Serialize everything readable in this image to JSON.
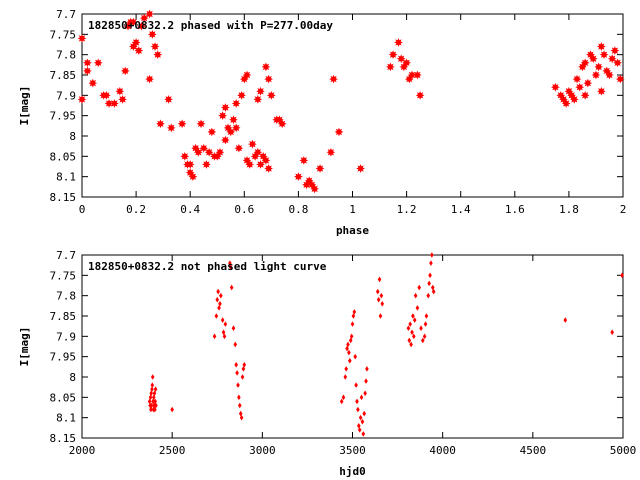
{
  "chart_data": [
    {
      "type": "scatter",
      "title": "182850+0832.2 phased with P=277.00day",
      "xlabel": "phase",
      "ylabel": "I[mag]",
      "xlim": [
        0,
        2
      ],
      "ylim": [
        8.15,
        7.7
      ],
      "y_inverted": true,
      "xticks": [
        "0",
        "0.2",
        "0.4",
        "0.6",
        "0.8",
        "1",
        "1.2",
        "1.4",
        "1.6",
        "1.8",
        "2"
      ],
      "yticks": [
        "7.7",
        "7.75",
        "7.8",
        "7.85",
        "7.9",
        "7.95",
        "8",
        "8.05",
        "8.1",
        "8.15"
      ],
      "grid": false,
      "marker_color": "#ff0000",
      "marker": "star",
      "series": [
        {
          "points": [
            [
              0.0,
              7.76
            ],
            [
              0.0,
              7.91
            ],
            [
              0.02,
              7.84
            ],
            [
              0.02,
              7.82
            ],
            [
              0.04,
              7.87
            ],
            [
              0.06,
              7.82
            ],
            [
              0.08,
              7.9
            ],
            [
              0.09,
              7.9
            ],
            [
              0.1,
              7.92
            ],
            [
              0.12,
              7.92
            ],
            [
              0.14,
              7.89
            ],
            [
              0.15,
              7.91
            ],
            [
              0.16,
              7.84
            ],
            [
              0.17,
              7.73
            ],
            [
              0.18,
              7.72
            ],
            [
              0.19,
              7.72
            ],
            [
              0.19,
              7.78
            ],
            [
              0.2,
              7.77
            ],
            [
              0.21,
              7.79
            ],
            [
              0.22,
              7.73
            ],
            [
              0.23,
              7.71
            ],
            [
              0.25,
              7.7
            ],
            [
              0.25,
              7.86
            ],
            [
              0.26,
              7.75
            ],
            [
              0.27,
              7.78
            ],
            [
              0.28,
              7.8
            ],
            [
              0.29,
              7.97
            ],
            [
              0.32,
              7.91
            ],
            [
              0.33,
              7.98
            ],
            [
              0.37,
              7.97
            ],
            [
              0.38,
              8.05
            ],
            [
              0.39,
              8.07
            ],
            [
              0.4,
              8.07
            ],
            [
              0.4,
              8.09
            ],
            [
              0.41,
              8.1
            ],
            [
              0.42,
              8.03
            ],
            [
              0.43,
              8.04
            ],
            [
              0.44,
              7.97
            ],
            [
              0.45,
              8.03
            ],
            [
              0.46,
              8.07
            ],
            [
              0.47,
              8.04
            ],
            [
              0.48,
              7.99
            ],
            [
              0.49,
              8.05
            ],
            [
              0.5,
              8.05
            ],
            [
              0.51,
              8.04
            ],
            [
              0.52,
              7.95
            ],
            [
              0.53,
              8.01
            ],
            [
              0.53,
              7.93
            ],
            [
              0.54,
              7.98
            ],
            [
              0.55,
              7.99
            ],
            [
              0.56,
              7.96
            ],
            [
              0.57,
              7.98
            ],
            [
              0.57,
              7.92
            ],
            [
              0.58,
              8.03
            ],
            [
              0.59,
              7.9
            ],
            [
              0.6,
              7.86
            ],
            [
              0.61,
              7.85
            ],
            [
              0.61,
              8.06
            ],
            [
              0.62,
              8.07
            ],
            [
              0.63,
              8.02
            ],
            [
              0.64,
              8.05
            ],
            [
              0.65,
              7.91
            ],
            [
              0.65,
              8.04
            ],
            [
              0.66,
              8.07
            ],
            [
              0.66,
              7.89
            ],
            [
              0.67,
              8.05
            ],
            [
              0.68,
              8.06
            ],
            [
              0.68,
              7.83
            ],
            [
              0.69,
              8.08
            ],
            [
              0.69,
              7.86
            ],
            [
              0.7,
              7.9
            ],
            [
              0.72,
              7.96
            ],
            [
              0.73,
              7.96
            ],
            [
              0.74,
              7.97
            ],
            [
              0.8,
              8.1
            ],
            [
              0.82,
              8.06
            ],
            [
              0.83,
              8.12
            ],
            [
              0.84,
              8.11
            ],
            [
              0.85,
              8.12
            ],
            [
              0.86,
              8.13
            ],
            [
              0.88,
              8.08
            ],
            [
              0.92,
              8.04
            ],
            [
              0.93,
              7.86
            ],
            [
              0.95,
              7.99
            ],
            [
              1.03,
              8.08
            ],
            [
              1.14,
              7.83
            ],
            [
              1.15,
              7.8
            ],
            [
              1.17,
              7.77
            ],
            [
              1.18,
              7.81
            ],
            [
              1.19,
              7.83
            ],
            [
              1.2,
              7.82
            ],
            [
              1.21,
              7.86
            ],
            [
              1.22,
              7.85
            ],
            [
              1.24,
              7.85
            ],
            [
              1.25,
              7.9
            ],
            [
              1.75,
              7.88
            ],
            [
              1.77,
              7.9
            ],
            [
              1.78,
              7.91
            ],
            [
              1.79,
              7.92
            ],
            [
              1.8,
              7.89
            ],
            [
              1.81,
              7.9
            ],
            [
              1.82,
              7.91
            ],
            [
              1.83,
              7.86
            ],
            [
              1.84,
              7.88
            ],
            [
              1.85,
              7.83
            ],
            [
              1.86,
              7.82
            ],
            [
              1.86,
              7.9
            ],
            [
              1.87,
              7.87
            ],
            [
              1.88,
              7.8
            ],
            [
              1.89,
              7.81
            ],
            [
              1.9,
              7.85
            ],
            [
              1.91,
              7.83
            ],
            [
              1.92,
              7.78
            ],
            [
              1.92,
              7.89
            ],
            [
              1.93,
              7.8
            ],
            [
              1.94,
              7.84
            ],
            [
              1.95,
              7.85
            ],
            [
              1.96,
              7.81
            ],
            [
              1.97,
              7.79
            ],
            [
              1.98,
              7.82
            ],
            [
              1.99,
              7.86
            ]
          ]
        }
      ]
    },
    {
      "type": "scatter",
      "title": "182850+0832.2 not phased light curve",
      "xlabel": "hjd0",
      "ylabel": "I[mag]",
      "xlim": [
        2000,
        5000
      ],
      "ylim": [
        8.15,
        7.7
      ],
      "y_inverted": true,
      "xticks": [
        "2000",
        "2500",
        "3000",
        "3500",
        "4000",
        "4500",
        "5000"
      ],
      "yticks": [
        "7.7",
        "7.75",
        "7.8",
        "7.85",
        "7.9",
        "7.95",
        "8",
        "8.05",
        "8.1",
        "8.15"
      ],
      "grid": false,
      "marker_color": "#ff0000",
      "marker": "diamond",
      "series": [
        {
          "points": [
            [
              2375,
              8.06
            ],
            [
              2378,
              8.07
            ],
            [
              2380,
              8.05
            ],
            [
              2382,
              8.08
            ],
            [
              2384,
              8.04
            ],
            [
              2386,
              8.07
            ],
            [
              2388,
              8.03
            ],
            [
              2390,
              8.02
            ],
            [
              2392,
              8.0
            ],
            [
              2394,
              8.06
            ],
            [
              2396,
              8.08
            ],
            [
              2398,
              8.05
            ],
            [
              2400,
              8.07
            ],
            [
              2402,
              8.04
            ],
            [
              2404,
              8.08
            ],
            [
              2406,
              8.06
            ],
            [
              2408,
              8.03
            ],
            [
              2410,
              8.07
            ],
            [
              2500,
              8.08
            ],
            [
              2735,
              7.9
            ],
            [
              2745,
              7.85
            ],
            [
              2750,
              7.81
            ],
            [
              2755,
              7.79
            ],
            [
              2760,
              7.83
            ],
            [
              2765,
              7.82
            ],
            [
              2770,
              7.8
            ],
            [
              2780,
              7.86
            ],
            [
              2785,
              7.89
            ],
            [
              2790,
              7.9
            ],
            [
              2795,
              7.87
            ],
            [
              2820,
              7.72
            ],
            [
              2825,
              7.73
            ],
            [
              2830,
              7.78
            ],
            [
              2840,
              7.88
            ],
            [
              2850,
              7.92
            ],
            [
              2855,
              7.97
            ],
            [
              2860,
              7.99
            ],
            [
              2865,
              8.02
            ],
            [
              2870,
              8.05
            ],
            [
              2875,
              8.07
            ],
            [
              2880,
              8.09
            ],
            [
              2885,
              8.1
            ],
            [
              2890,
              8.0
            ],
            [
              2895,
              7.98
            ],
            [
              2900,
              7.97
            ],
            [
              3440,
              8.06
            ],
            [
              3450,
              8.05
            ],
            [
              3460,
              8.0
            ],
            [
              3465,
              7.98
            ],
            [
              3470,
              7.93
            ],
            [
              3475,
              7.92
            ],
            [
              3480,
              7.94
            ],
            [
              3485,
              7.96
            ],
            [
              3490,
              7.91
            ],
            [
              3495,
              7.9
            ],
            [
              3500,
              7.87
            ],
            [
              3505,
              7.85
            ],
            [
              3510,
              7.84
            ],
            [
              3515,
              7.95
            ],
            [
              3520,
              8.02
            ],
            [
              3525,
              8.06
            ],
            [
              3530,
              8.08
            ],
            [
              3535,
              8.12
            ],
            [
              3540,
              8.13
            ],
            [
              3545,
              8.1
            ],
            [
              3550,
              8.05
            ],
            [
              3555,
              8.11
            ],
            [
              3560,
              8.14
            ],
            [
              3565,
              8.09
            ],
            [
              3570,
              8.04
            ],
            [
              3575,
              8.01
            ],
            [
              3580,
              7.98
            ],
            [
              3640,
              7.79
            ],
            [
              3645,
              7.81
            ],
            [
              3650,
              7.76
            ],
            [
              3655,
              7.85
            ],
            [
              3660,
              7.8
            ],
            [
              3665,
              7.82
            ],
            [
              3810,
              7.88
            ],
            [
              3815,
              7.91
            ],
            [
              3820,
              7.87
            ],
            [
              3825,
              7.92
            ],
            [
              3830,
              7.89
            ],
            [
              3835,
              7.85
            ],
            [
              3840,
              7.9
            ],
            [
              3845,
              7.86
            ],
            [
              3850,
              7.8
            ],
            [
              3860,
              7.83
            ],
            [
              3870,
              7.78
            ],
            [
              3880,
              7.88
            ],
            [
              3890,
              7.91
            ],
            [
              3900,
              7.9
            ],
            [
              3905,
              7.87
            ],
            [
              3910,
              7.85
            ],
            [
              3920,
              7.8
            ],
            [
              3925,
              7.77
            ],
            [
              3930,
              7.75
            ],
            [
              3935,
              7.72
            ],
            [
              3940,
              7.7
            ],
            [
              3945,
              7.78
            ],
            [
              3950,
              7.79
            ],
            [
              4680,
              7.86
            ],
            [
              4940,
              7.89
            ],
            [
              4995,
              7.75
            ]
          ]
        }
      ]
    }
  ]
}
